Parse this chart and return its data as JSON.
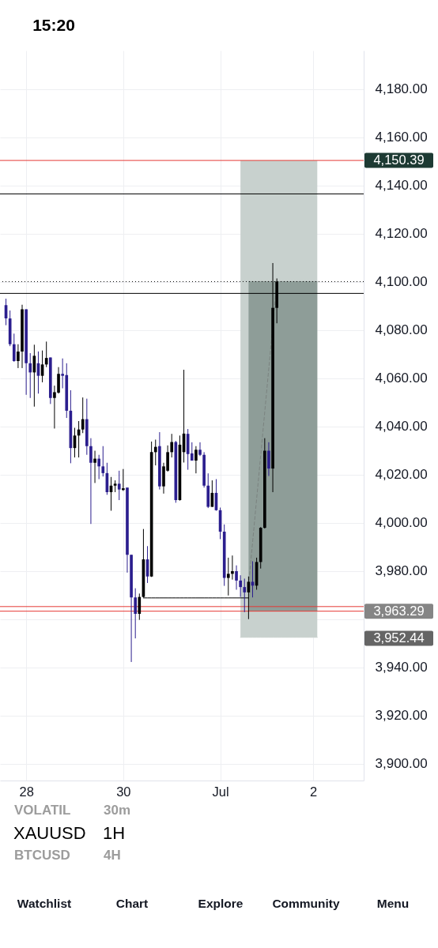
{
  "chart_data": {
    "type": "candlestick",
    "title": "XAUUSD",
    "subtitle": "1H",
    "categories": [
      null,
      null,
      null,
      null,
      null,
      "28",
      null,
      null,
      null,
      null,
      null,
      null,
      null,
      null,
      null,
      null,
      null,
      null,
      null,
      null,
      null,
      null,
      null,
      null,
      null,
      null,
      null,
      null,
      null,
      "30",
      null,
      null,
      null,
      null,
      null,
      null,
      null,
      null,
      null,
      null,
      null,
      null,
      null,
      null,
      null,
      null,
      null,
      null,
      null,
      null,
      null,
      null,
      null,
      "Jul",
      null,
      null,
      null,
      null,
      null,
      null,
      null,
      null,
      null,
      null,
      null,
      null,
      null,
      null,
      null,
      null,
      null,
      null,
      null,
      null,
      null,
      null,
      "2",
      null,
      null,
      null,
      null,
      null,
      null,
      null,
      null,
      null,
      null,
      null
    ],
    "ohlc": [
      [
        4090.3,
        4093.0,
        4082.0,
        4084.8
      ],
      [
        4084.8,
        4088.1,
        4073.3,
        4074.1
      ],
      [
        4074.1,
        4078.5,
        4066.8,
        4067.1
      ],
      [
        4067.1,
        4074.1,
        4064.2,
        4071.1
      ],
      [
        4071.1,
        4090.5,
        4064.2,
        4088.6
      ],
      [
        4088.6,
        4088.6,
        4053.1,
        4066.2
      ],
      [
        4066.2,
        4070.4,
        4051.8,
        4062.4
      ],
      [
        4062.4,
        4073.9,
        4048.2,
        4069.3
      ],
      [
        4066.2,
        4071.1,
        4053.6,
        4061.0
      ],
      [
        4061.0,
        4071.5,
        4058.3,
        4065.7
      ],
      [
        4065.7,
        4075.2,
        4064.6,
        4068.4
      ],
      [
        4068.6,
        4068.6,
        4049.3,
        4051.8
      ],
      [
        4051.8,
        4056.9,
        4039.1,
        4054.2
      ],
      [
        4054.0,
        4064.6,
        4053.6,
        4061.8
      ],
      [
        4061.8,
        4068.2,
        4055.8,
        4061.0
      ],
      [
        4061.3,
        4066.2,
        4043.5,
        4046.5
      ],
      [
        4046.5,
        4055.0,
        4024.7,
        4031.0
      ],
      [
        4031.0,
        4039.4,
        4027.1,
        4036.2
      ],
      [
        4036.2,
        4042.2,
        4027.1,
        4038.7
      ],
      [
        4038.7,
        4052.0,
        4037.2,
        4043.0
      ],
      [
        4043.0,
        4051.5,
        4028.2,
        4031.8
      ],
      [
        4031.8,
        4035.1,
        3999.5,
        4024.9
      ],
      [
        4024.9,
        4029.9,
        4016.5,
        4026.6
      ],
      [
        4026.6,
        4028.2,
        4018.1,
        4023.4
      ],
      [
        4023.4,
        4031.8,
        4019.2,
        4020.6
      ],
      [
        4020.6,
        4024.9,
        4011.6,
        4012.7
      ],
      [
        4012.7,
        4019.0,
        4005.0,
        4015.4
      ],
      [
        4015.4,
        4017.6,
        4012.7,
        4016.2
      ],
      [
        4016.2,
        4021.6,
        4009.4,
        4013.8
      ],
      [
        4013.6,
        4022.3,
        4013.2,
        4014.3
      ],
      [
        4014.6,
        4014.6,
        3979.3,
        3986.7
      ],
      [
        3986.7,
        3986.7,
        3942.2,
        3969.0
      ],
      [
        3969.0,
        3972.8,
        3952.0,
        3962.2
      ],
      [
        3962.2,
        3970.6,
        3959.7,
        3969.2
      ],
      [
        3969.2,
        3997.4,
        3969.0,
        3984.8
      ],
      [
        3984.8,
        3990.3,
        3975.0,
        3977.7
      ],
      [
        3977.7,
        4033.7,
        3977.5,
        4029.3
      ],
      [
        4029.3,
        4034.5,
        4023.8,
        4031.5
      ],
      [
        4031.8,
        4037.6,
        4013.8,
        4015.1
      ],
      [
        4015.1,
        4024.9,
        4012.1,
        4023.4
      ],
      [
        4021.6,
        4032.1,
        4021.2,
        4029.3
      ],
      [
        4029.3,
        4036.9,
        4027.1,
        4033.5
      ],
      [
        4033.5,
        4034.0,
        4008.3,
        4009.4
      ],
      [
        4009.4,
        4036.2,
        4009.2,
        4032.4
      ],
      [
        4029.3,
        4063.5,
        4025.0,
        4037.0
      ],
      [
        4036.9,
        4038.9,
        4022.0,
        4028.5
      ],
      [
        4028.8,
        4033.4,
        4025.8,
        4025.8
      ],
      [
        4025.8,
        4031.8,
        4020.5,
        4030.3
      ],
      [
        4030.3,
        4033.4,
        4027.7,
        4028.2
      ],
      [
        4028.2,
        4029.3,
        4014.6,
        4015.4
      ],
      [
        4015.4,
        4020.5,
        4006.1,
        4006.6
      ],
      [
        4006.6,
        4017.6,
        4006.6,
        4012.4
      ],
      [
        4012.4,
        4018.1,
        4005.0,
        4005.2
      ],
      [
        4005.2,
        4006.3,
        3993.2,
        3996.3
      ],
      [
        3996.3,
        3999.3,
        3973.8,
        3977.1
      ],
      [
        3977.1,
        3985.5,
        3969.8,
        3978.8
      ],
      [
        3978.8,
        3986.4,
        3976.4,
        3979.9
      ],
      [
        3979.9,
        3982.3,
        3972.2,
        3976.0
      ],
      [
        3976.0,
        3978.2,
        3969.2,
        3973.3
      ],
      [
        3973.3,
        3976.8,
        3962.9,
        3971.1
      ],
      [
        3971.1,
        3977.7,
        3960.0,
        3975.5
      ],
      [
        3975.5,
        3984.0,
        3969.0,
        3973.9
      ],
      [
        3973.9,
        3985.5,
        3972.2,
        3983.7
      ],
      [
        3983.7,
        3998.2,
        3981.0,
        3997.9
      ],
      [
        3997.9,
        4035.1,
        3997.6,
        4029.9
      ],
      [
        4029.9,
        4033.4,
        4019.4,
        4022.5
      ],
      [
        4022.5,
        4107.8,
        4012.7,
        4089.2
      ],
      [
        4089.2,
        4101.4,
        4082.8,
        4100.1
      ],
      null,
      null,
      null,
      null,
      null,
      null,
      null,
      null,
      null,
      null,
      null,
      null,
      null,
      null,
      null,
      null,
      null,
      null,
      null,
      null
    ],
    "colors": [
      "#2b1e8e",
      "#2b1e8e",
      "#2b1e8e",
      "#000000",
      "#000000",
      "#2b1e8e",
      "#2b1e8e",
      "#000000",
      "#2b1e8e",
      "#000000",
      "#000000",
      "#2b1e8e",
      "#000000",
      "#000000",
      "#2b1e8e",
      "#2b1e8e",
      "#2b1e8e",
      "#000000",
      "#000000",
      "#000000",
      "#2b1e8e",
      "#2b1e8e",
      "#000000",
      "#2b1e8e",
      "#2b1e8e",
      "#2b1e8e",
      "#000000",
      "#000000",
      "#2b1e8e",
      "#000000",
      "#2b1e8e",
      "#2b1e8e",
      "#2b1e8e",
      "#000000",
      "#000000",
      "#2b1e8e",
      "#000000",
      "#000000",
      "#2b1e8e",
      "#000000",
      "#000000",
      "#000000",
      "#2b1e8e",
      "#000000",
      "#000000",
      "#2b1e8e",
      "#2b1e8e",
      "#000000",
      "#2b1e8e",
      "#2b1e8e",
      "#2b1e8e",
      "#000000",
      "#2b1e8e",
      "#2b1e8e",
      "#2b1e8e",
      "#000000",
      "#000000",
      "#2b1e8e",
      "#2b1e8e",
      "#2b1e8e",
      "#000000",
      "#2b1e8e",
      "#000000",
      "#000000",
      "#000000",
      "#2b1e8e",
      "#000000",
      "#000000",
      null,
      null,
      null,
      null,
      null,
      null,
      null,
      null,
      null,
      null,
      null,
      null,
      null,
      null,
      null,
      null,
      null,
      null,
      null,
      null
    ],
    "series": [
      {
        "type": "line",
        "color": "#c8d1ce",
        "values": [
          null,
          null,
          null,
          null,
          null,
          null,
          null,
          null,
          null,
          null,
          null,
          null,
          null,
          null,
          null,
          null,
          null,
          null,
          null,
          null,
          null,
          null,
          null,
          null,
          null,
          null,
          null,
          null,
          null,
          null,
          null,
          null,
          null,
          null,
          null,
          null,
          null,
          null,
          null,
          null,
          null,
          null,
          null,
          null,
          null,
          null,
          null,
          null,
          null,
          null,
          null,
          null,
          null,
          null,
          null,
          null,
          null,
          null,
          3952.44,
          3952.44,
          3952.44,
          3952.44,
          3952.44,
          3952.44,
          3952.44,
          3952.44,
          3952.44,
          3952.44,
          3952.44,
          3952.44,
          3952.44,
          3952.44,
          3952.44,
          3952.44,
          3952.44,
          3952.44,
          3952.44,
          3952.44,
          null,
          null,
          null,
          null,
          null,
          null,
          null,
          null,
          null,
          null
        ],
        "lower": [
          null,
          null,
          null,
          null,
          null,
          null,
          null,
          null,
          null,
          null,
          null,
          null,
          null,
          null,
          null,
          null,
          null,
          null,
          null,
          null,
          null,
          null,
          null,
          null,
          null,
          null,
          null,
          null,
          null,
          null,
          null,
          null,
          null,
          null,
          null,
          null,
          null,
          null,
          null,
          null,
          null,
          null,
          null,
          null,
          null,
          null,
          null,
          null,
          null,
          null,
          null,
          null,
          null,
          null,
          null,
          null,
          null,
          null,
          3952.44,
          3952.44,
          3952.44,
          3952.44,
          3952.44,
          3952.44,
          3952.44,
          3952.44,
          3952.44,
          3952.44,
          3952.44,
          3952.44,
          3952.44,
          3952.44,
          3952.44,
          3952.44,
          3952.44,
          3952.44,
          3952.44,
          3952.44,
          null,
          null,
          null,
          null,
          null,
          null,
          null,
          null,
          null,
          null
        ],
        "upper": [
          null,
          null,
          null,
          null,
          null,
          null,
          null,
          null,
          null,
          null,
          null,
          null,
          null,
          null,
          null,
          null,
          null,
          null,
          null,
          null,
          null,
          null,
          null,
          null,
          null,
          null,
          null,
          null,
          null,
          null,
          null,
          null,
          null,
          null,
          null,
          null,
          null,
          null,
          null,
          null,
          null,
          null,
          null,
          null,
          null,
          null,
          null,
          null,
          null,
          null,
          null,
          null,
          null,
          null,
          null,
          null,
          null,
          null,
          4150.39,
          4150.39,
          4150.39,
          4150.39,
          4150.39,
          4150.39,
          4150.39,
          4150.39,
          4150.39,
          4150.39,
          4150.39,
          4150.39,
          4150.39,
          4150.39,
          4150.39,
          4150.39,
          4150.39,
          4150.39,
          4150.39,
          4150.39,
          null,
          null,
          null,
          null,
          null,
          null,
          null,
          null,
          null,
          null
        ]
      },
      {
        "type": "line",
        "color": "#8e9d98",
        "values": [
          null,
          null,
          null,
          null,
          null,
          null,
          null,
          null,
          null,
          null,
          null,
          null,
          null,
          null,
          null,
          null,
          null,
          null,
          null,
          null,
          null,
          null,
          null,
          null,
          null,
          null,
          null,
          null,
          null,
          null,
          null,
          null,
          null,
          null,
          null,
          null,
          null,
          null,
          null,
          null,
          null,
          null,
          null,
          null,
          null,
          null,
          null,
          null,
          null,
          null,
          null,
          null,
          null,
          null,
          null,
          null,
          null,
          null,
          null,
          null,
          4100.1,
          4100.1,
          4100.1,
          4100.1,
          4100.1,
          4100.1,
          4100.1,
          4100.1,
          4100.1,
          4100.1,
          4100.1,
          4100.1,
          4100.1,
          4100.1,
          4100.1,
          4100.1,
          4100.1,
          4100.1,
          null,
          null,
          null,
          null,
          null,
          null,
          null,
          null,
          null,
          null
        ],
        "lower": [
          null,
          null,
          null,
          null,
          null,
          null,
          null,
          null,
          null,
          null,
          null,
          null,
          null,
          null,
          null,
          null,
          null,
          null,
          null,
          null,
          null,
          null,
          null,
          null,
          null,
          null,
          null,
          null,
          null,
          null,
          null,
          null,
          null,
          null,
          null,
          null,
          null,
          null,
          null,
          null,
          null,
          null,
          null,
          null,
          null,
          null,
          null,
          null,
          null,
          null,
          null,
          null,
          null,
          null,
          null,
          null,
          null,
          null,
          null,
          null,
          3963.29,
          3963.29,
          3963.29,
          3963.29,
          3963.29,
          3963.29,
          3963.29,
          3963.29,
          3963.29,
          3963.29,
          3963.29,
          3963.29,
          3963.29,
          3963.29,
          3963.29,
          3963.29,
          3963.29,
          3963.29,
          null,
          null,
          null,
          null,
          null,
          null,
          null,
          null,
          null,
          null
        ],
        "upper": [
          null,
          null,
          null,
          null,
          null,
          null,
          null,
          null,
          null,
          null,
          null,
          null,
          null,
          null,
          null,
          null,
          null,
          null,
          null,
          null,
          null,
          null,
          null,
          null,
          null,
          null,
          null,
          null,
          null,
          null,
          null,
          null,
          null,
          null,
          null,
          null,
          null,
          null,
          null,
          null,
          null,
          null,
          null,
          null,
          null,
          null,
          null,
          null,
          null,
          null,
          null,
          null,
          null,
          null,
          null,
          null,
          null,
          null,
          null,
          null,
          4100.1,
          4100.1,
          4100.1,
          4100.1,
          4100.1,
          4100.1,
          4100.1,
          4100.1,
          4100.1,
          4100.1,
          4100.1,
          4100.1,
          4100.1,
          4100.1,
          4100.1,
          4100.1,
          4100.1,
          4100.1,
          null,
          null,
          null,
          null,
          null,
          null,
          null,
          null,
          null,
          null
        ]
      },
      {
        "type": "line",
        "color": "#000000",
        "values": [
          null,
          null,
          null,
          null,
          null,
          null,
          null,
          null,
          null,
          null,
          null,
          null,
          null,
          null,
          null,
          null,
          null,
          null,
          null,
          null,
          null,
          null,
          null,
          null,
          null,
          null,
          null,
          null,
          null,
          null,
          null,
          null,
          null,
          null,
          3968.8,
          3968.8,
          3968.8,
          3968.8,
          3968.8,
          3968.8,
          3968.8,
          3968.8,
          3968.8,
          3968.8,
          3968.8,
          3968.8,
          3968.8,
          3968.8,
          3968.8,
          3968.8,
          3968.8,
          3968.8,
          3968.8,
          3968.8,
          3968.8,
          3968.8,
          3968.8,
          3968.8,
          3968.8,
          3968.8,
          3968.8,
          null,
          null,
          null,
          null,
          null,
          null,
          null,
          null,
          null,
          null,
          null,
          null,
          null,
          null,
          null,
          null,
          null,
          null,
          null,
          null,
          null,
          null,
          null,
          null,
          null,
          null,
          null
        ]
      },
      {
        "type": "line",
        "color": "#7b8380",
        "line_style": "dashed",
        "values": [
          null,
          null,
          null,
          null,
          null,
          null,
          null,
          null,
          null,
          null,
          null,
          null,
          null,
          null,
          null,
          null,
          null,
          null,
          null,
          null,
          null,
          null,
          null,
          null,
          null,
          null,
          null,
          null,
          null,
          null,
          null,
          null,
          null,
          null,
          null,
          null,
          null,
          null,
          null,
          null,
          null,
          null,
          null,
          null,
          null,
          null,
          null,
          null,
          null,
          null,
          null,
          null,
          null,
          null,
          null,
          null,
          null,
          null,
          null,
          null,
          3973.9,
          3991.9,
          4009.9,
          4027.9,
          4045.9,
          4063.9,
          4082.0,
          4100.1,
          null,
          null,
          null,
          null,
          null,
          null,
          null,
          null,
          null,
          null,
          null,
          null,
          null,
          null,
          null,
          null,
          null,
          null,
          null,
          null
        ]
      }
    ],
    "ref_lines": [
      {
        "axis": "y",
        "value": 4150.39,
        "label": "4,150.39",
        "color": "#e53935"
      },
      {
        "axis": "y",
        "value": 4136.5,
        "color": "#000000"
      },
      {
        "axis": "y",
        "value": 4100.1,
        "color": "#000000",
        "line_style": "dotted"
      },
      {
        "axis": "y",
        "value": 4095.2,
        "color": "#000000"
      },
      {
        "axis": "y",
        "value": 3965.2,
        "color": "#e53935"
      },
      {
        "axis": "y",
        "value": 3963.29,
        "label": "3,963.29",
        "color": "#e53935"
      }
    ],
    "ylim": [
      3893,
      4196
    ],
    "yticks": [
      {
        "value": 4180,
        "label": "4,180.00"
      },
      {
        "value": 4160,
        "label": "4,160.00"
      },
      {
        "value": 4140,
        "label": "4,140.00"
      },
      {
        "value": 4120,
        "label": "4,120.00"
      },
      {
        "value": 4100,
        "label": "4,100.00"
      },
      {
        "value": 4080,
        "label": "4,080.00"
      },
      {
        "value": 4060,
        "label": "4,060.00"
      },
      {
        "value": 4040,
        "label": "4,040.00"
      },
      {
        "value": 4020,
        "label": "4,020.00"
      },
      {
        "value": 4000,
        "label": "4,000.00"
      },
      {
        "value": 3980,
        "label": "3,980.00"
      },
      {
        "value": 3960,
        "label": null
      },
      {
        "value": 3940,
        "label": "3,940.00"
      },
      {
        "value": 3920,
        "label": "3,920.00"
      },
      {
        "value": 3900,
        "label": "3,900.00"
      }
    ],
    "grid": true,
    "annotations": [
      "15:20",
      "VOLATIL",
      "30m",
      "BTCUSD",
      "4H",
      "Watchlist",
      "Chart",
      "Explore",
      "Community",
      "Menu",
      "3,952.44"
    ]
  }
}
